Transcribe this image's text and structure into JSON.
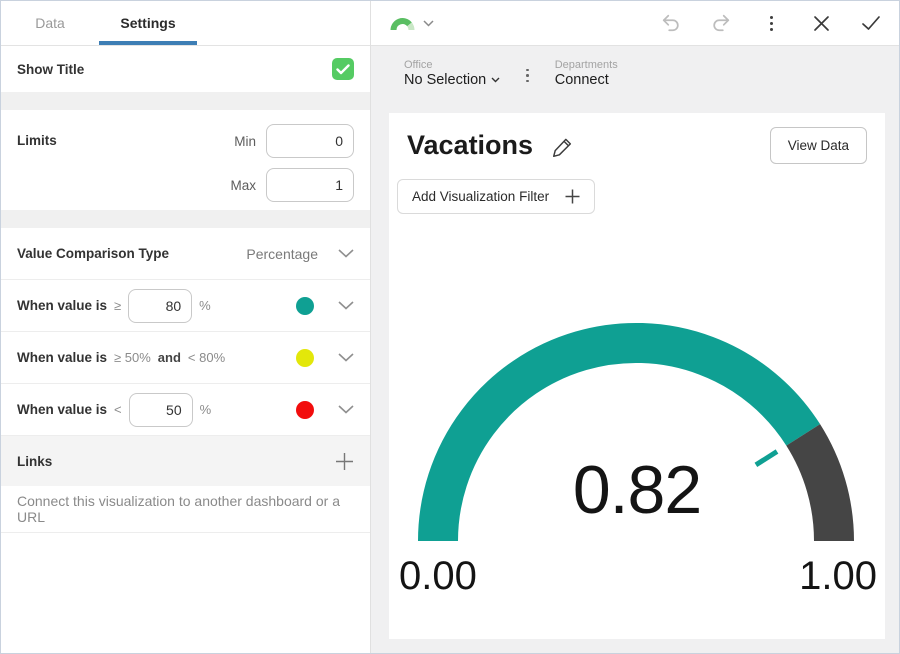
{
  "left_panel": {
    "tabs": [
      {
        "label": "Data"
      },
      {
        "label": "Settings"
      }
    ],
    "active_tab": "Settings",
    "show_title": {
      "label": "Show Title",
      "checked": true,
      "check_color": "#55cb63"
    },
    "limits": {
      "label": "Limits",
      "min_label": "Min",
      "min_value": "0",
      "max_label": "Max",
      "max_value": "1"
    },
    "comparison": {
      "label": "Value Comparison Type",
      "selected": "Percentage",
      "rules": [
        {
          "prefix": "When value is",
          "operator": "≥",
          "value": "80",
          "unit": "%",
          "color": "#0FA093"
        },
        {
          "prefix": "When value is",
          "range_low": "≥ 50%",
          "conjunction": "and",
          "range_high": "< 80%",
          "color": "#E3E70A"
        },
        {
          "prefix": "When value is",
          "operator": "<",
          "value": "50",
          "unit": "%",
          "color": "#F20D0D"
        }
      ]
    },
    "links": {
      "label": "Links"
    },
    "connect_hint": "Connect this visualization to another dashboard or a URL"
  },
  "toolbar": {
    "icons": {
      "widget_selector": "gauge-chart-icon",
      "undo": "undo-arrow-icon",
      "redo": "redo-arrow-icon",
      "more": "vertical-ellipsis-icon",
      "close": "x-icon",
      "confirm": "checkmark-icon"
    }
  },
  "filters": {
    "office_label": "Office",
    "office_value": "No Selection",
    "departments_label": "Departments",
    "departments_value": "Connect"
  },
  "card": {
    "title": "Vacations",
    "view_data_label": "View Data",
    "add_filter_label": "Add Visualization Filter"
  },
  "chart_data": {
    "type": "gauge",
    "title": "Vacations",
    "value": 0.82,
    "value_label": "0.82",
    "min": 0,
    "max": 1,
    "min_label": "0.00",
    "max_label": "1.00",
    "segments": [
      {
        "from": 0,
        "to": 0.82,
        "color": "#0FA093"
      },
      {
        "from": 0.82,
        "to": 1,
        "color": "#454545"
      }
    ],
    "needle_color": "#0FA093",
    "geometry_note": "semicircle gauge, filled proportion equals value/max"
  }
}
